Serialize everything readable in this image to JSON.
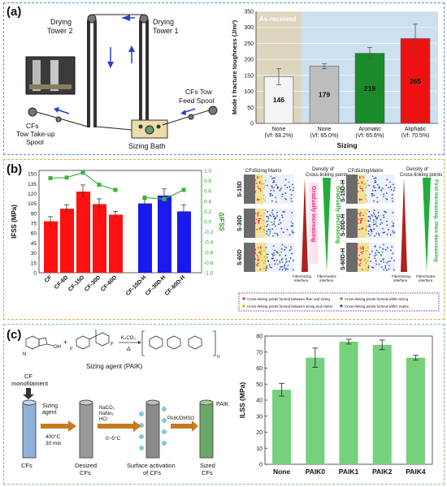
{
  "panels": {
    "a": {
      "label": "(a)",
      "schematic": {
        "drying_tower_2": "Drying\nTower 2",
        "drying_tower_1": "Drying\nTower 1",
        "cfs_tow_feed_spool": "CFs Tow\nFeed Spool",
        "cfs_tow_takeup_spool": "CFs\nTow Take-up\nSpool",
        "sizing_bath": "Sizing Bath"
      }
    },
    "b": {
      "label": "(b)",
      "schematic": {
        "cfs": "CFs",
        "sizing": "Sizing",
        "matrix": "Matrix",
        "density_header": "Density of\nCross-linking points",
        "left_rows": [
          "S-15D",
          "S-30D",
          "S-60D"
        ],
        "right_rows": [
          "S-15D-H",
          "S-30D-H",
          "S-60D-H"
        ],
        "gradually_increasing": "Gradually increasing",
        "gradually_decreasing": "Gradually decreasing",
        "first_increasing": "First increasing, then decreasing",
        "fiber_sizing_interface": "Fiber/sizing\ninterface",
        "fiber_matrix_interface": "Fiber/matrix\ninterface",
        "legend": [
          "Cross-linking points formed between fiber and sizing",
          "Cross-linking points formed within sizing",
          "Cross-linking points formed between sizing and matrix",
          "Cross-linking points formed within matrix"
        ]
      }
    },
    "c": {
      "label": "(c)",
      "schematic": {
        "k2co3": "K₂CO₃",
        "delta": "Δ",
        "n": "n",
        "sizing_agent": "Sizing agent (PAIK)",
        "cf_monofilament": "CF\nmonofilament",
        "sizing_agent_step": "Sizing\nagent",
        "desize_cond": "400°C\n30 min",
        "reagents": "NaCO₃\nNaNo₂\nHCl",
        "temp": "0~5°C",
        "solvent": "PAIK/DMSO",
        "paik": "PAIK",
        "stages": [
          "CFs",
          "Desized\nCFs",
          "Surface activation\nof CFs",
          "Sized\nCFs"
        ]
      }
    }
  },
  "chart_data": [
    {
      "type": "bar",
      "panel": "a",
      "annotation": "As-received",
      "categories": [
        "None\n(Vf: 68.2%)",
        "None\n(Vf: 65.0%)",
        "Aromatic\n(Vf: 65.6%)",
        "Aliphatic\n(Vf: 70.5%)"
      ],
      "values": [
        146,
        179,
        219,
        265
      ],
      "errors": [
        25,
        8,
        18,
        45
      ],
      "data_labels": [
        "146",
        "179",
        "219",
        "265"
      ],
      "colors": [
        "#f4f4f4",
        "#bdbdbd",
        "#1a8a2a",
        "#ee1111"
      ],
      "xlabel": "Sizing",
      "ylabel": "Mode I fracture toughness (J/m²)",
      "ylim": [
        0,
        350
      ],
      "yticks": [
        0,
        50,
        100,
        150,
        200,
        250,
        300,
        350
      ],
      "grid": true,
      "bg_left": "#ddd5bd",
      "bg_right": "#cde0ef"
    },
    {
      "type": "bar",
      "panel": "b",
      "categories": [
        "CF",
        "CF-6D",
        "CF-15D",
        "CF-30D",
        "CF-60D",
        "CF-15D-H",
        "CF-30D-H",
        "CF-60D-H"
      ],
      "values": [
        78,
        97,
        123,
        104,
        88,
        105,
        117,
        93
      ],
      "errors": [
        7,
        6,
        10,
        8,
        5,
        6,
        10,
        10
      ],
      "bar_colors": [
        "#ff1111",
        "#ff1111",
        "#ff1111",
        "#ff1111",
        "#ff1111",
        "#1a1aee",
        "#1a1aee",
        "#1a1aee"
      ],
      "ylabel": "IFSS (MPa)",
      "ylim": [
        0,
        155
      ],
      "yticks": [
        0,
        15,
        30,
        45,
        60,
        75,
        90,
        105,
        120,
        135,
        150
      ],
      "secondary": {
        "type": "line",
        "ylabel": "ΔIFSS",
        "ylim": [
          -1.0,
          1.0
        ],
        "yticks": [
          -1.0,
          -0.8,
          -0.6,
          -0.4,
          -0.2,
          0.0,
          0.2,
          0.4,
          0.6,
          0.8,
          1.0
        ],
        "groups": [
          {
            "categories": [
              "CF",
              "CF-6D",
              "CF-15D",
              "CF-30D",
              "CF-60D"
            ],
            "values": [
              0.85,
              0.86,
              0.96,
              0.72,
              0.62
            ]
          },
          {
            "categories": [
              "CF-15D-H",
              "CF-30D-H",
              "CF-60D-H"
            ],
            "values": [
              0.47,
              0.44,
              0.62
            ]
          }
        ],
        "color": "#3cb33c"
      }
    },
    {
      "type": "bar",
      "panel": "c",
      "categories": [
        "None",
        "PAIK0",
        "PAIK1",
        "PAIK2",
        "PAIK4"
      ],
      "values": [
        46.5,
        66.5,
        76.5,
        74.5,
        66.5
      ],
      "errors": [
        4,
        6,
        1.5,
        3,
        1.5
      ],
      "color": "#76d17c",
      "ylabel": "ILSS (MPa)",
      "ylim": [
        0,
        80
      ],
      "yticks": [
        0,
        10,
        20,
        30,
        40,
        50,
        60,
        70,
        80
      ],
      "xlabel": ""
    }
  ]
}
